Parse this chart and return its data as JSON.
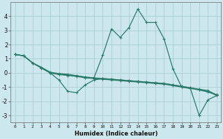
{
  "xlabel": "Humidex (Indice chaleur)",
  "background_color": "#cce8ee",
  "grid_color": "#aacdd4",
  "line_color": "#2a7a6a",
  "series": [
    {
      "x": [
        0,
        1,
        2,
        3,
        4,
        5,
        6,
        7,
        8,
        9,
        10,
        11,
        12,
        13,
        14,
        15,
        16,
        17,
        18,
        19,
        20,
        21,
        22,
        23
      ],
      "y": [
        1.3,
        1.2,
        0.7,
        0.4,
        0.05,
        -0.05,
        -0.1,
        -0.2,
        -0.3,
        -0.35,
        1.25,
        3.1,
        2.5,
        3.2,
        4.5,
        3.55,
        3.55,
        2.4,
        0.3,
        -1.0,
        -1.1,
        -3.0,
        -1.9,
        -1.6
      ]
    },
    {
      "x": [
        0,
        1,
        2,
        3,
        4,
        5,
        6,
        7,
        8,
        9,
        10,
        11,
        12,
        13,
        14,
        15,
        16,
        17,
        18,
        19,
        20,
        21,
        22,
        23
      ],
      "y": [
        1.3,
        1.2,
        0.7,
        0.35,
        0.0,
        -0.5,
        -1.3,
        -1.4,
        -0.85,
        -0.5,
        -0.4,
        -0.45,
        -0.5,
        -0.55,
        -0.6,
        -0.65,
        -0.7,
        -0.75,
        -0.85,
        -0.95,
        -1.05,
        -1.2,
        -1.35,
        -1.55
      ]
    },
    {
      "x": [
        0,
        1,
        2,
        3,
        4,
        5,
        6,
        7,
        8,
        9,
        10,
        11,
        12,
        13,
        14,
        15,
        16,
        17,
        18,
        19,
        20,
        21,
        22,
        23
      ],
      "y": [
        1.3,
        1.2,
        0.7,
        0.35,
        0.0,
        -0.1,
        -0.15,
        -0.2,
        -0.3,
        -0.35,
        -0.4,
        -0.45,
        -0.5,
        -0.55,
        -0.6,
        -0.65,
        -0.7,
        -0.75,
        -0.85,
        -0.95,
        -1.05,
        -1.15,
        -1.25,
        -1.55
      ]
    },
    {
      "x": [
        0,
        1,
        2,
        3,
        4,
        5,
        6,
        7,
        8,
        9,
        10,
        11,
        12,
        13,
        14,
        15,
        16,
        17,
        18,
        19,
        20,
        21,
        22,
        23
      ],
      "y": [
        1.3,
        1.2,
        0.7,
        0.35,
        0.0,
        -0.12,
        -0.18,
        -0.25,
        -0.35,
        -0.4,
        -0.45,
        -0.5,
        -0.55,
        -0.6,
        -0.65,
        -0.7,
        -0.75,
        -0.8,
        -0.9,
        -1.0,
        -1.1,
        -1.2,
        -1.3,
        -1.6
      ]
    }
  ],
  "ylim": [
    -3.5,
    5.0
  ],
  "xlim": [
    -0.5,
    23.5
  ],
  "yticks": [
    -3,
    -2,
    -1,
    0,
    1,
    2,
    3,
    4
  ],
  "xticks": [
    0,
    1,
    2,
    3,
    4,
    5,
    6,
    7,
    8,
    9,
    10,
    11,
    12,
    13,
    14,
    15,
    16,
    17,
    18,
    19,
    20,
    21,
    22,
    23
  ],
  "ytick_fontsize": 6,
  "xtick_fontsize": 4.5,
  "xlabel_fontsize": 6
}
